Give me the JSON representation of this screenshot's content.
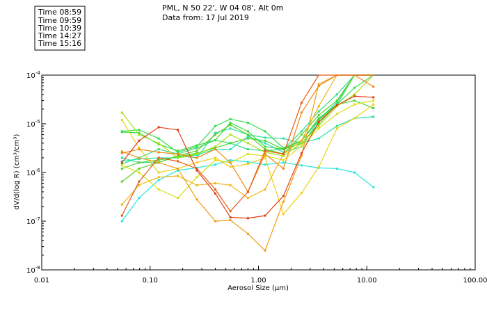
{
  "header": {
    "location": "PML, N 50 22', W 04 08', Alt 0m",
    "date": "Data from: 17 Jul 2019"
  },
  "legend": [
    {
      "label": "Time 08:59",
      "color": "#33dcc8"
    },
    {
      "label": "Time 09:59",
      "color": "#3ccc22"
    },
    {
      "label": "Time 10:39",
      "color": "#c9dc12"
    },
    {
      "label": "Time 14:27",
      "color": "#f0a810"
    },
    {
      "label": "Time 15:16",
      "color": "#e03a10"
    }
  ],
  "chart_data": {
    "type": "line",
    "title": "",
    "xlabel": "Aerosol Size (µm)",
    "ylabel": "dV/d(log R) (cm³/cm³)",
    "x_scale": "log",
    "y_scale": "log",
    "xlim": [
      0.01,
      100
    ],
    "ylim": [
      1e-08,
      0.0001
    ],
    "grid": false,
    "x_ticks": [
      {
        "value": 0.01,
        "label": "0.01"
      },
      {
        "value": 0.1,
        "label": "0.10"
      },
      {
        "value": 1,
        "label": "1.00"
      },
      {
        "value": 10,
        "label": "10.00"
      },
      {
        "value": 100,
        "label": "100.00"
      }
    ],
    "y_ticks": [
      {
        "value": 1e-08,
        "base": "10",
        "exp": "-8"
      },
      {
        "value": 1e-07,
        "base": "10",
        "exp": "-7"
      },
      {
        "value": 1e-06,
        "base": "10",
        "exp": "-6"
      },
      {
        "value": 1e-05,
        "base": "10",
        "exp": "-5"
      },
      {
        "value": 0.0001,
        "base": "10",
        "exp": "-4"
      }
    ],
    "x": [
      0.055,
      0.079,
      0.12,
      0.18,
      0.27,
      0.4,
      0.55,
      0.8,
      1.15,
      1.7,
      2.5,
      3.6,
      5.3,
      7.7,
      11.5
    ],
    "series": [
      {
        "group": 0,
        "color": "#1fe6e0",
        "values": [
          1e-07,
          3e-07,
          7e-07,
          1.1e-06,
          1.25e-06,
          1.45e-06,
          1.8e-06,
          1.65e-06,
          1.45e-06,
          1.6e-06,
          1.4e-06,
          1.25e-06,
          1.2e-06,
          1e-06,
          5e-07
        ]
      },
      {
        "group": 0,
        "color": "#22e6b8",
        "values": [
          1.7e-06,
          1.9e-06,
          2e-06,
          2e-06,
          2.3e-06,
          3e-06,
          3e-06,
          5.5e-06,
          4e-06,
          2.6e-06,
          3.4e-06,
          1.2e-05,
          2.8e-05,
          0.0001,
          0.0001
        ]
      },
      {
        "group": 0,
        "color": "#28e0a0",
        "values": [
          2e-06,
          1.6e-06,
          1.6e-06,
          2.2e-06,
          2e-06,
          6.5e-06,
          8e-06,
          6e-06,
          5.2e-06,
          5e-06,
          4e-06,
          5e-06,
          9e-06,
          1.3e-05,
          1.4e-05
        ]
      },
      {
        "group": 0,
        "color": "#30dc84",
        "values": [
          1.5e-06,
          2e-06,
          3e-06,
          2.4e-06,
          3.2e-06,
          4.6e-06,
          4e-06,
          3e-06,
          2.8e-06,
          3e-06,
          7e-06,
          1.8e-05,
          4e-05,
          0.0001,
          0.0001
        ]
      },
      {
        "group": 1,
        "color": "#34dc4c",
        "values": [
          7e-06,
          7.5e-06,
          5e-06,
          2.6e-06,
          3.4e-06,
          9e-06,
          1.25e-05,
          1.05e-05,
          7e-06,
          3.2e-06,
          4.5e-06,
          1.3e-05,
          2.5e-05,
          5.5e-05,
          0.0001
        ]
      },
      {
        "group": 1,
        "color": "#3cd83c",
        "values": [
          6.8e-06,
          6.5e-06,
          3.8e-06,
          2.8e-06,
          3.6e-06,
          4.6e-06,
          1.05e-05,
          7e-06,
          3.4e-06,
          3e-06,
          4e-06,
          1e-05,
          2.5e-05,
          0.0001,
          0.0001
        ]
      },
      {
        "group": 1,
        "color": "#48d42c",
        "values": [
          1.2e-06,
          1.6e-06,
          1.8e-06,
          2.1e-06,
          2.5e-06,
          3.2e-06,
          4e-06,
          5e-06,
          4.5e-06,
          3e-06,
          4.5e-06,
          1.2e-05,
          2.5e-05,
          3e-05,
          2.1e-05
        ]
      },
      {
        "group": 1,
        "color": "#5ad024",
        "values": [
          6.5e-07,
          1.2e-06,
          1.6e-06,
          2.2e-06,
          2.8e-06,
          6e-06,
          9.5e-06,
          6e-06,
          3e-06,
          2.4e-06,
          6e-06,
          1.5e-05,
          3e-05,
          0.0001,
          0.0001
        ]
      },
      {
        "group": 2,
        "color": "#a8e010",
        "values": [
          1.7e-05,
          6e-06,
          4e-06,
          2e-06,
          2.4e-06,
          3.4e-06,
          6e-06,
          4e-06,
          2.6e-06,
          2.2e-06,
          4e-06,
          9e-06,
          2.3e-05,
          4e-05,
          0.0001
        ]
      },
      {
        "group": 2,
        "color": "#dcdc10",
        "values": [
          1.4e-06,
          1e-06,
          4.5e-07,
          3e-07,
          8e-07,
          1.8e-06,
          1.6e-06,
          2.4e-06,
          2.2e-06,
          1.8e-06,
          3.5e-06,
          8e-06,
          1.6e-05,
          2.5e-05,
          3e-05
        ]
      },
      {
        "group": 2,
        "color": "#ecd018",
        "values": [
          1.2e-05,
          3.2e-06,
          1e-06,
          1.2e-06,
          1.6e-06,
          2e-06,
          1.3e-06,
          1.5e-06,
          2e-06,
          1.4e-07,
          3.8e-07,
          1.3e-06,
          8e-06,
          1.3e-05,
          2.5e-05
        ]
      },
      {
        "group": 3,
        "color": "#f0b414",
        "values": [
          2.2e-07,
          5.5e-07,
          8e-07,
          8.5e-07,
          5.5e-07,
          6e-07,
          5.5e-07,
          3e-07,
          4.5e-07,
          2.4e-06,
          4.5e-06,
          2.3e-05,
          0.0001,
          0.0001,
          0.0001
        ]
      },
      {
        "group": 3,
        "color": "#f09c10",
        "values": [
          2.7e-06,
          2e-06,
          1.6e-06,
          1.2e-06,
          2.8e-07,
          1e-07,
          1.05e-07,
          5.5e-08,
          2.5e-08,
          2.5e-07,
          2.2e-06,
          6.5e-05,
          0.0001,
          0.0001,
          0.0001
        ]
      },
      {
        "group": 3,
        "color": "#f08810",
        "values": [
          2.5e-06,
          3e-06,
          2.6e-06,
          2.4e-06,
          2e-06,
          3e-06,
          1.6e-06,
          4e-07,
          2.4e-06,
          1.2e-06,
          1.7e-05,
          6e-05,
          0.0001,
          0.0001,
          5.8e-05
        ]
      },
      {
        "group": 4,
        "color": "#e85810",
        "values": [
          1.3e-07,
          6.5e-07,
          2e-06,
          1.7e-06,
          1.2e-06,
          4.5e-07,
          1.6e-07,
          4e-07,
          2.8e-06,
          2.4e-06,
          2.7e-05,
          0.0001,
          0.0001,
          0.0001,
          0.0001
        ]
      },
      {
        "group": 4,
        "color": "#e03c10",
        "values": [
          1.6e-06,
          4.5e-06,
          8.5e-06,
          7.5e-06,
          1.1e-06,
          3.7e-07,
          1.2e-07,
          1.15e-07,
          1.3e-07,
          3.3e-07,
          2.5e-06,
          1.1e-05,
          2.4e-05,
          3.7e-05,
          3.5e-05
        ]
      }
    ]
  }
}
